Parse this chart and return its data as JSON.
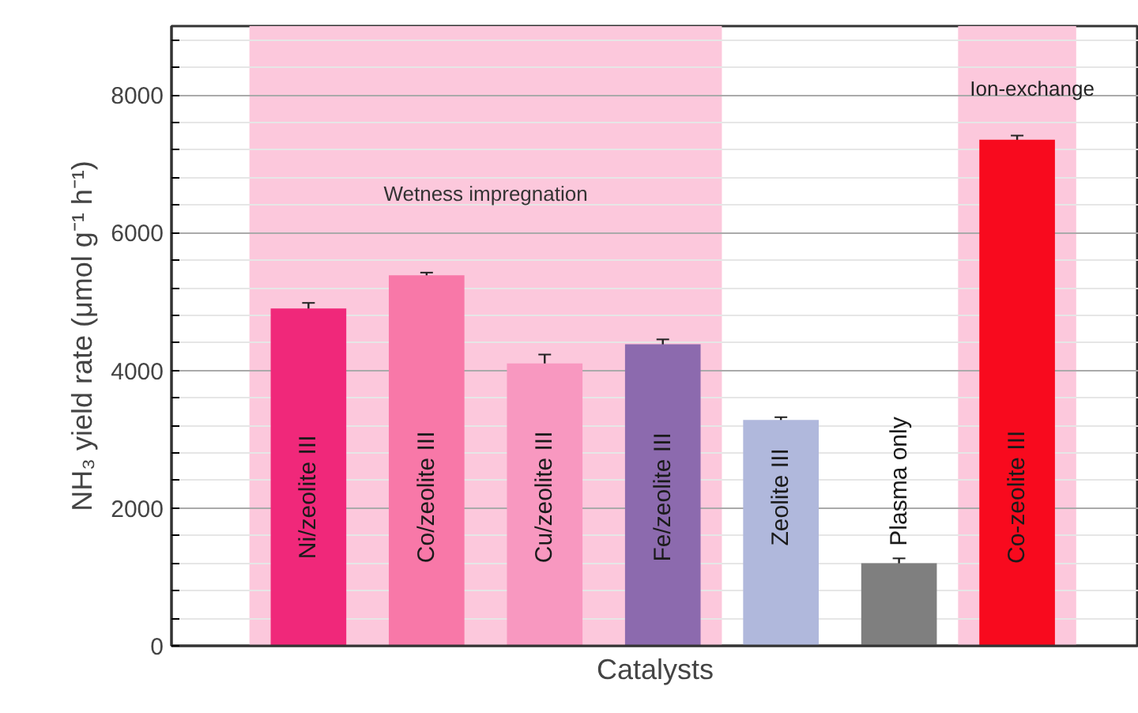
{
  "chart_data": {
    "type": "bar",
    "xlabel": "Catalysts",
    "ylabel": "NH₃ yield rate (μmol g⁻¹ h⁻¹)",
    "categories": [
      "Ni/zeolite III",
      "Co/zeolite III",
      "Cu/zeolite III",
      "Fe/zeolite III",
      "Zeolite III",
      "Plasma only",
      "Co-zeolite III"
    ],
    "values": [
      4900,
      5380,
      4100,
      4380,
      3280,
      1200,
      7350
    ],
    "errors": [
      80,
      40,
      130,
      70,
      40,
      70,
      60
    ],
    "colors": [
      "#f0287a",
      "#f878a8",
      "#f898c0",
      "#8c6aae",
      "#b0b8dc",
      "#7f7f7f",
      "#f80a1e"
    ],
    "ylim": [
      0,
      9000
    ],
    "yticks": [
      0,
      {
        "value": 400,
        "label": null
      },
      {
        "value": 800,
        "label": null
      },
      {
        "value": 1200,
        "label": null
      },
      {
        "value": 1600,
        "label": null
      },
      2000,
      {
        "value": 2400,
        "label": null
      },
      {
        "value": 2800,
        "label": null
      },
      {
        "value": 3200,
        "label": null
      },
      {
        "value": 3600,
        "label": null
      },
      4000,
      {
        "value": 4400,
        "label": null
      },
      {
        "value": 4800,
        "label": null
      },
      {
        "value": 5200,
        "label": null
      },
      {
        "value": 5600,
        "label": null
      },
      6000,
      {
        "value": 6400,
        "label": null
      },
      {
        "value": 6800,
        "label": null
      },
      {
        "value": 7200,
        "label": null
      },
      {
        "value": 7600,
        "label": null
      },
      8000,
      {
        "value": 8400,
        "label": null
      },
      {
        "value": 8800,
        "label": null
      }
    ],
    "bands": [
      {
        "axis": "x",
        "from": "Ni/zeolite III",
        "to": "Fe/zeolite III",
        "label": "Wetness impregnation",
        "color": "#fcc8dc"
      },
      {
        "axis": "x",
        "from": "Co-zeolite III",
        "to": "Co-zeolite III",
        "label": "Ion-exchange",
        "color": "#fcc8dc"
      }
    ],
    "grid": true,
    "tick_labels": "y"
  }
}
